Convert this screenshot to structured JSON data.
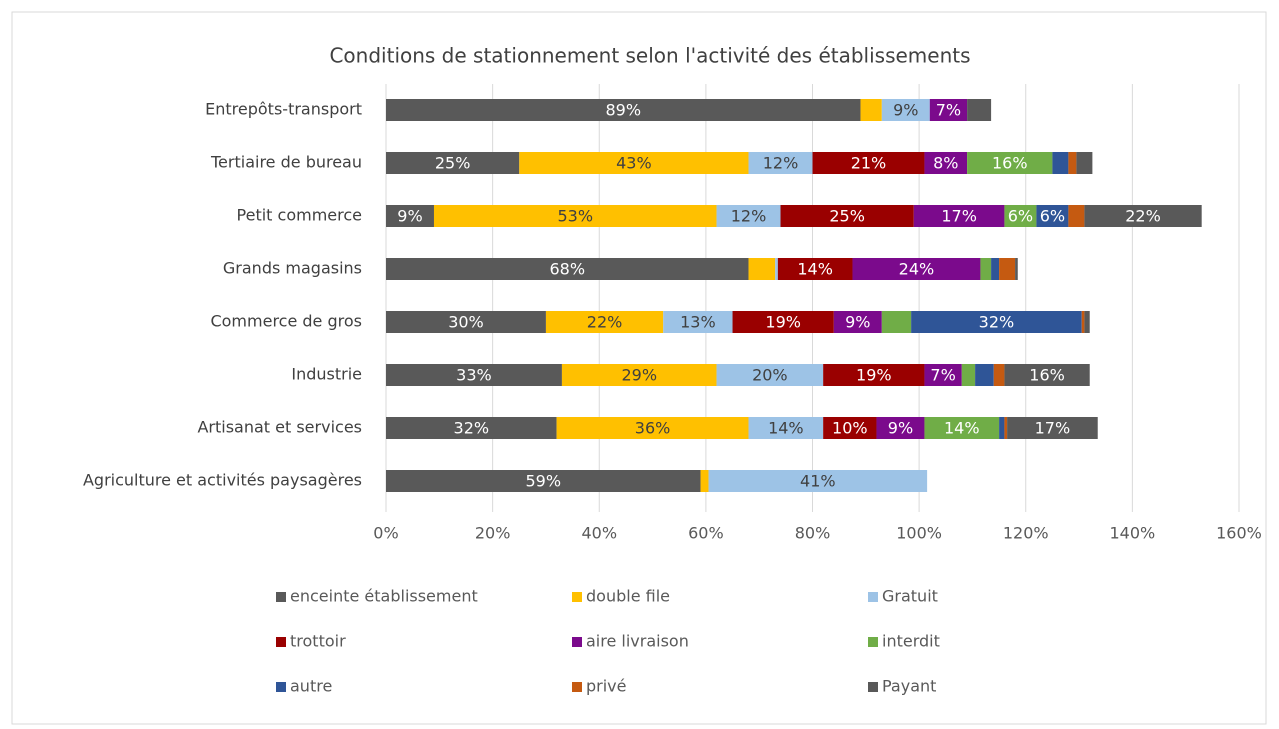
{
  "chart_data": {
    "type": "stacked_bar_horizontal",
    "title": "Conditions de stationnement selon l'activité des établissements",
    "categories": [
      "Entrepôts-transport",
      "Tertiaire de bureau",
      "Petit commerce",
      "Grands magasins",
      "Commerce de gros",
      "Industrie",
      "Artisanat et services",
      "Agriculture et activités paysagères"
    ],
    "series": [
      {
        "name": "enceinte établissement",
        "color": "#595959",
        "values": [
          89,
          25,
          9,
          68,
          30,
          33,
          32,
          59
        ],
        "value_labels": [
          "89%",
          "25%",
          "9%",
          "68%",
          "30%",
          "33%",
          "32%",
          "59%"
        ]
      },
      {
        "name": "double file",
        "color": "#ffc000",
        "values": [
          4,
          43,
          53,
          5,
          22,
          29,
          36,
          1.5
        ],
        "value_labels": [
          null,
          "43%",
          "53%",
          null,
          "22%",
          "29%",
          "36%",
          null
        ]
      },
      {
        "name": "Gratuit",
        "color": "#9dc3e6",
        "values": [
          9,
          12,
          12,
          0.5,
          13,
          20,
          14,
          41
        ],
        "value_labels": [
          "9%",
          "12%",
          "12%",
          null,
          "13%",
          "20%",
          "14%",
          "41%"
        ]
      },
      {
        "name": "trottoir",
        "color": "#9a0000",
        "values": [
          null,
          21,
          25,
          14,
          19,
          19,
          10,
          null
        ],
        "value_labels": [
          null,
          "21%",
          "25%",
          "14%",
          "19%",
          "19%",
          "10%",
          null
        ]
      },
      {
        "name": "aire livraison",
        "color": "#7b0a8c",
        "values": [
          7,
          8,
          17,
          24,
          9,
          7,
          9,
          null
        ],
        "value_labels": [
          "7%",
          "8%",
          "17%",
          "24%",
          "9%",
          "7%",
          "9%",
          null
        ]
      },
      {
        "name": "interdit",
        "color": "#70ad47",
        "values": [
          null,
          16,
          6,
          2,
          5.5,
          2.5,
          14,
          null
        ],
        "value_labels": [
          null,
          "16%",
          "6%",
          null,
          null,
          null,
          "14%",
          null
        ]
      },
      {
        "name": "autre",
        "color": "#2f5597",
        "values": [
          null,
          3,
          6,
          1.5,
          32,
          3.5,
          1,
          null
        ],
        "value_labels": [
          null,
          null,
          "6%",
          null,
          "32%",
          null,
          null,
          null
        ]
      },
      {
        "name": "privé",
        "color": "#c55a11",
        "values": [
          null,
          1.5,
          3,
          3,
          0.5,
          2,
          0.5,
          null
        ],
        "value_labels": [
          null,
          null,
          null,
          null,
          null,
          null,
          null,
          null
        ]
      },
      {
        "name": "Payant",
        "color": "#595959",
        "values": [
          4.5,
          3,
          22,
          0.5,
          1,
          16,
          17,
          null
        ],
        "value_labels": [
          null,
          null,
          "22%",
          null,
          null,
          "16%",
          "17%",
          null
        ]
      }
    ],
    "xlim": [
      0,
      160
    ],
    "xticks": [
      {
        "value": 0,
        "label": "0%"
      },
      {
        "value": 20,
        "label": "20%"
      },
      {
        "value": 40,
        "label": "40%"
      },
      {
        "value": 60,
        "label": "60%"
      },
      {
        "value": 80,
        "label": "80%"
      },
      {
        "value": 100,
        "label": "100%"
      },
      {
        "value": 120,
        "label": "120%"
      },
      {
        "value": 140,
        "label": "140%"
      },
      {
        "value": 160,
        "label": "160%"
      }
    ],
    "grid": true,
    "legend": "bottom"
  }
}
